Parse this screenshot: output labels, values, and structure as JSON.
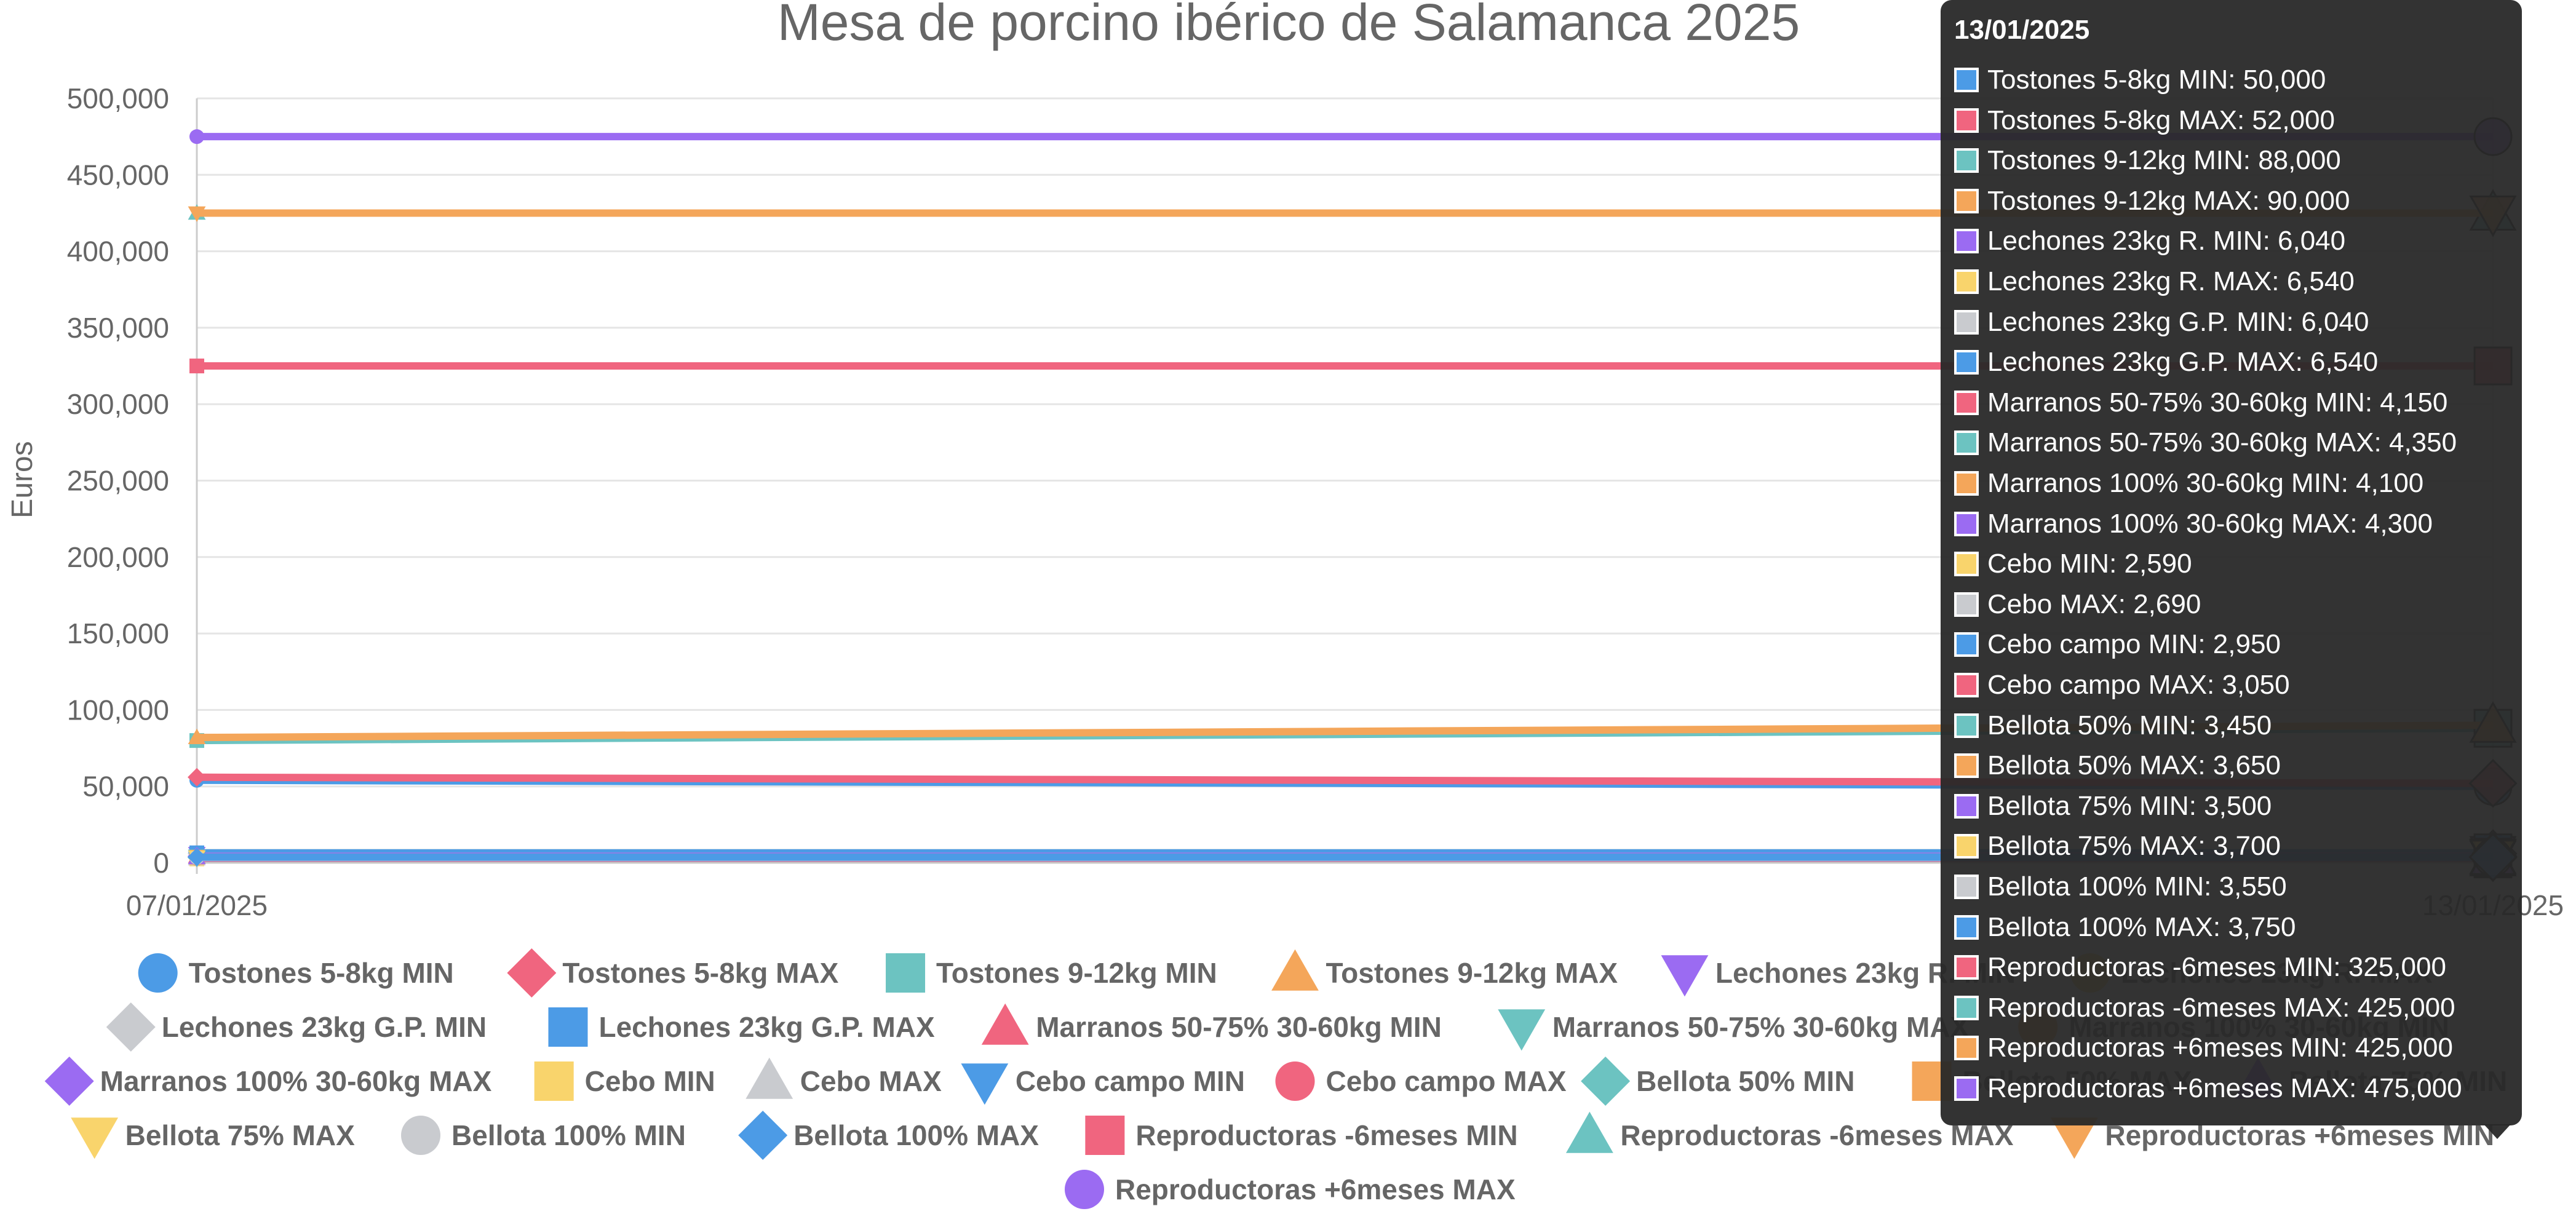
{
  "chart_data": {
    "type": "line",
    "title": "Mesa de porcino ibérico de Salamanca 2025",
    "ylabel": "Euros",
    "xlabel": "",
    "x": [
      "07/01/2025",
      "13/01/2025"
    ],
    "ylim": [
      0,
      500000
    ],
    "yticks": [
      "0",
      "50,000",
      "100,000",
      "150,000",
      "200,000",
      "250,000",
      "300,000",
      "350,000",
      "400,000",
      "450,000",
      "500,000"
    ],
    "grid": true,
    "legend_position": "bottom",
    "series": [
      {
        "name": "Tostones 5-8kg MIN",
        "values": [
          54000,
          50000
        ],
        "color": "#4C9BE6",
        "marker": "circle"
      },
      {
        "name": "Tostones 5-8kg MAX",
        "values": [
          56000,
          52000
        ],
        "color": "#F0657F",
        "marker": "diamond"
      },
      {
        "name": "Tostones 9-12kg MIN",
        "values": [
          80000,
          88000
        ],
        "color": "#6CC3C1",
        "marker": "square"
      },
      {
        "name": "Tostones 9-12kg MAX",
        "values": [
          82000,
          90000
        ],
        "color": "#F4A65A",
        "marker": "triangle"
      },
      {
        "name": "Lechones 23kg R. MIN",
        "values": [
          6040,
          6040
        ],
        "color": "#9B6BF2",
        "marker": "triangle-down"
      },
      {
        "name": "Lechones 23kg R. MAX",
        "values": [
          6540,
          6540
        ],
        "color": "#F9D46C",
        "marker": "circle"
      },
      {
        "name": "Lechones 23kg G.P. MIN",
        "values": [
          6040,
          6040
        ],
        "color": "#C9CBCF",
        "marker": "diamond"
      },
      {
        "name": "Lechones 23kg G.P. MAX",
        "values": [
          6540,
          6540
        ],
        "color": "#4C9BE6",
        "marker": "square"
      },
      {
        "name": "Marranos 50-75% 30-60kg MIN",
        "values": [
          4150,
          4150
        ],
        "color": "#F0657F",
        "marker": "triangle"
      },
      {
        "name": "Marranos 50-75% 30-60kg MAX",
        "values": [
          4350,
          4350
        ],
        "color": "#6CC3C1",
        "marker": "triangle-down"
      },
      {
        "name": "Marranos 100% 30-60kg MIN",
        "values": [
          4100,
          4100
        ],
        "color": "#F4A65A",
        "marker": "circle"
      },
      {
        "name": "Marranos 100% 30-60kg MAX",
        "values": [
          4300,
          4300
        ],
        "color": "#9B6BF2",
        "marker": "diamond"
      },
      {
        "name": "Cebo MIN",
        "values": [
          2590,
          2590
        ],
        "color": "#F9D46C",
        "marker": "square"
      },
      {
        "name": "Cebo MAX",
        "values": [
          2690,
          2690
        ],
        "color": "#C9CBCF",
        "marker": "triangle"
      },
      {
        "name": "Cebo campo MIN",
        "values": [
          2950,
          2950
        ],
        "color": "#4C9BE6",
        "marker": "triangle-down"
      },
      {
        "name": "Cebo campo MAX",
        "values": [
          3050,
          3050
        ],
        "color": "#F0657F",
        "marker": "circle"
      },
      {
        "name": "Bellota 50% MIN",
        "values": [
          3450,
          3450
        ],
        "color": "#6CC3C1",
        "marker": "diamond"
      },
      {
        "name": "Bellota 50% MAX",
        "values": [
          3650,
          3650
        ],
        "color": "#F4A65A",
        "marker": "square"
      },
      {
        "name": "Bellota 75% MIN",
        "values": [
          3500,
          3500
        ],
        "color": "#9B6BF2",
        "marker": "triangle"
      },
      {
        "name": "Bellota 75% MAX",
        "values": [
          3700,
          3700
        ],
        "color": "#F9D46C",
        "marker": "triangle-down"
      },
      {
        "name": "Bellota 100% MIN",
        "values": [
          3550,
          3550
        ],
        "color": "#C9CBCF",
        "marker": "circle"
      },
      {
        "name": "Bellota 100% MAX",
        "values": [
          3750,
          3750
        ],
        "color": "#4C9BE6",
        "marker": "diamond"
      },
      {
        "name": "Reproductoras -6meses MIN",
        "values": [
          325000,
          325000
        ],
        "color": "#F0657F",
        "marker": "square"
      },
      {
        "name": "Reproductoras -6meses MAX",
        "values": [
          425000,
          425000
        ],
        "color": "#6CC3C1",
        "marker": "triangle"
      },
      {
        "name": "Reproductoras +6meses MIN",
        "values": [
          425000,
          425000
        ],
        "color": "#F4A65A",
        "marker": "triangle-down"
      },
      {
        "name": "Reproductoras +6meses MAX",
        "values": [
          475000,
          475000
        ],
        "color": "#9B6BF2",
        "marker": "circle"
      }
    ],
    "tooltip": {
      "title": "13/01/2025",
      "rows": [
        "Tostones 5-8kg MIN: 50,000",
        "Tostones 5-8kg MAX: 52,000",
        "Tostones 9-12kg MIN: 88,000",
        "Tostones 9-12kg MAX: 90,000",
        "Lechones 23kg R. MIN: 6,040",
        "Lechones 23kg R. MAX: 6,540",
        "Lechones 23kg G.P. MIN: 6,040",
        "Lechones 23kg G.P. MAX: 6,540",
        "Marranos 50-75% 30-60kg MIN: 4,150",
        "Marranos 50-75% 30-60kg MAX: 4,350",
        "Marranos 100% 30-60kg MIN: 4,100",
        "Marranos 100% 30-60kg MAX: 4,300",
        "Cebo MIN: 2,590",
        "Cebo MAX: 2,690",
        "Cebo campo MIN: 2,950",
        "Cebo campo MAX: 3,050",
        "Bellota 50% MIN: 3,450",
        "Bellota 50% MAX: 3,650",
        "Bellota 75% MIN: 3,500",
        "Bellota 75% MAX: 3,700",
        "Bellota 100% MIN: 3,550",
        "Bellota 100% MAX: 3,750",
        "Reproductoras -6meses MIN: 325,000",
        "Reproductoras -6meses MAX: 425,000",
        "Reproductoras +6meses MIN: 425,000",
        "Reproductoras +6meses MAX: 475,000"
      ]
    }
  }
}
